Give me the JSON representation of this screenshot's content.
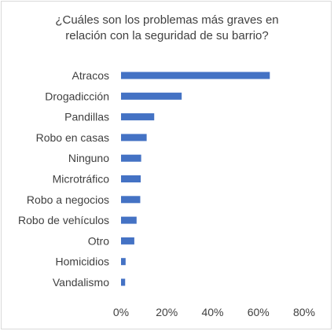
{
  "chart_data": {
    "type": "bar",
    "orientation": "horizontal",
    "title_lines": [
      "¿Cuáles son los problemas más graves en",
      "relación con la seguridad de su barrio?"
    ],
    "categories": [
      "Atracos",
      "Drogadicción",
      "Pandillas",
      "Robo en casas",
      "Ninguno",
      "Microtráfico",
      "Robo a negocios",
      "Robo de vehículos",
      "Otro",
      "Homicidios",
      "Vandalismo"
    ],
    "values": [
      0.65,
      0.265,
      0.145,
      0.112,
      0.088,
      0.086,
      0.084,
      0.068,
      0.058,
      0.02,
      0.018
    ],
    "xlim": [
      0,
      0.8
    ],
    "xticks": [
      0,
      0.2,
      0.4,
      0.6,
      0.8
    ],
    "xtick_labels": [
      "0%",
      "20%",
      "40%",
      "60%",
      "80%"
    ],
    "bar_color": "#4472c4",
    "grid": false,
    "legend": "none"
  }
}
